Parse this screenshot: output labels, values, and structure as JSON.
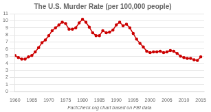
{
  "chart_data": {
    "type": "line",
    "title": "The U.S. Murder Rate (per 100,000 people)",
    "x_label": "FactCheck.org chart based on FBI data",
    "x": [
      1960,
      1961,
      1962,
      1963,
      1964,
      1965,
      1966,
      1967,
      1968,
      1969,
      1970,
      1971,
      1972,
      1973,
      1974,
      1975,
      1976,
      1977,
      1978,
      1979,
      1980,
      1981,
      1982,
      1983,
      1984,
      1985,
      1986,
      1987,
      1988,
      1989,
      1990,
      1991,
      1992,
      1993,
      1994,
      1995,
      1996,
      1997,
      1998,
      1999,
      2000,
      2001,
      2002,
      2003,
      2004,
      2005,
      2006,
      2007,
      2008,
      2009,
      2010,
      2011,
      2012,
      2013,
      2014,
      2015
    ],
    "values": [
      5.1,
      4.8,
      4.6,
      4.6,
      4.9,
      5.1,
      5.6,
      6.2,
      6.9,
      7.3,
      7.9,
      8.6,
      9.0,
      9.4,
      9.8,
      9.6,
      8.8,
      8.8,
      9.0,
      9.7,
      10.2,
      9.8,
      9.1,
      8.3,
      7.9,
      7.9,
      8.6,
      8.3,
      8.4,
      8.7,
      9.4,
      9.8,
      9.3,
      9.5,
      9.0,
      8.2,
      7.4,
      6.8,
      6.3,
      5.7,
      5.5,
      5.6,
      5.6,
      5.7,
      5.5,
      5.6,
      5.8,
      5.7,
      5.4,
      5.0,
      4.8,
      4.7,
      4.7,
      4.5,
      4.4,
      4.9
    ],
    "color": "#cc0000",
    "marker": "circle",
    "xlim": [
      1960,
      2016
    ],
    "ylim": [
      0,
      11
    ],
    "xticks": [
      1960,
      1965,
      1970,
      1975,
      1980,
      1985,
      1990,
      1995,
      2000,
      2005,
      2010,
      2015
    ],
    "yticks": [
      0,
      1,
      2,
      3,
      4,
      5,
      6,
      7,
      8,
      9,
      10,
      11
    ],
    "grid": "y"
  }
}
